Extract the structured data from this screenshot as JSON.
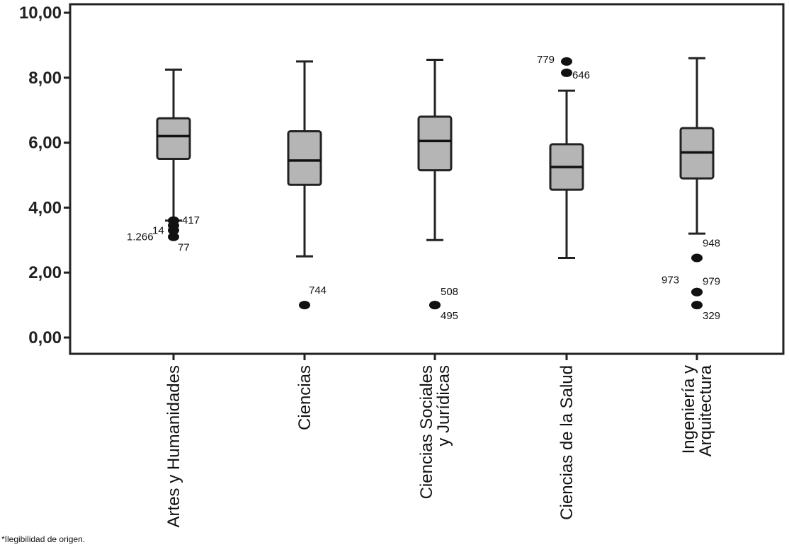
{
  "chart_data": {
    "type": "boxplot",
    "ylim": [
      0,
      10
    ],
    "yticks": [
      "0,00",
      "2,00",
      "4,00",
      "6,00",
      "8,00",
      "10,00"
    ],
    "grid": false,
    "categories": [
      "Artes y Humanidades",
      "Ciencias",
      "Ciencias Sociales y Jurídicas",
      "Ciencias de la Salud",
      "Ingeniería y Arquitectura"
    ],
    "boxes": [
      {
        "whisker_low": 3.6,
        "q1": 5.5,
        "median": 6.2,
        "q3": 6.75,
        "whisker_high": 8.25,
        "outliers": [
          {
            "y": 3.6,
            "label": "417"
          },
          {
            "y": 3.45,
            "label": "14"
          },
          {
            "y": 3.3,
            "label": "1.266"
          },
          {
            "y": 3.1,
            "label": "77"
          }
        ]
      },
      {
        "whisker_low": 2.5,
        "q1": 4.7,
        "median": 5.45,
        "q3": 6.35,
        "whisker_high": 8.5,
        "outliers": [
          {
            "y": 1.0,
            "label": "744"
          }
        ]
      },
      {
        "whisker_low": 3.0,
        "q1": 5.15,
        "median": 6.05,
        "q3": 6.8,
        "whisker_high": 8.55,
        "outliers": [
          {
            "y": 1.0,
            "label": "508"
          },
          {
            "y": 1.0,
            "label": "495"
          }
        ]
      },
      {
        "whisker_low": 2.45,
        "q1": 4.55,
        "median": 5.25,
        "q3": 5.95,
        "whisker_high": 7.6,
        "outliers": [
          {
            "y": 8.5,
            "label": "779"
          },
          {
            "y": 8.15,
            "label": "646"
          }
        ]
      },
      {
        "whisker_low": 3.2,
        "q1": 4.9,
        "median": 5.7,
        "q3": 6.45,
        "whisker_high": 8.6,
        "outliers": [
          {
            "y": 2.45,
            "label": "948"
          },
          {
            "y": 1.4,
            "label": "973"
          },
          {
            "y": 1.4,
            "label": "979"
          },
          {
            "y": 1.0,
            "label": "329"
          }
        ]
      }
    ],
    "box_color": "#b5b5b5"
  },
  "footnote": "*Ilegibilidad de origen."
}
